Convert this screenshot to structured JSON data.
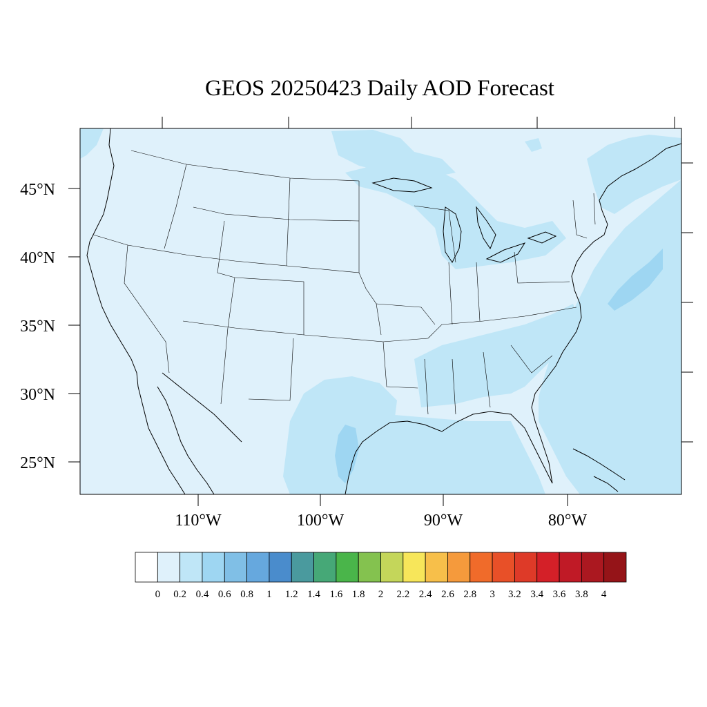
{
  "title": "GEOS 20250423 Daily AOD Forecast",
  "lat_labels": [
    "45°N",
    "40°N",
    "35°N",
    "30°N",
    "25°N"
  ],
  "lon_labels": [
    "110°W",
    "100°W",
    "90°W",
    "80°W"
  ],
  "colorbar": {
    "labels": [
      "0",
      "0.2",
      "0.4",
      "0.6",
      "0.8",
      "1",
      "1.2",
      "1.4",
      "1.6",
      "1.8",
      "2",
      "2.2",
      "2.4",
      "2.6",
      "2.8",
      "3",
      "3.2",
      "3.4",
      "3.6",
      "3.8",
      "4"
    ],
    "colors": [
      "#ffffff",
      "#dff1fb",
      "#bfe6f7",
      "#9ed6f2",
      "#80bfe6",
      "#66a8de",
      "#4a8ccc",
      "#4a9a9e",
      "#46a877",
      "#4ab54a",
      "#84c24f",
      "#c4d65a",
      "#f7e65a",
      "#f7bf4a",
      "#f59a3c",
      "#f06b2a",
      "#e85028",
      "#de3a28",
      "#d42028",
      "#c01a26",
      "#ab1820",
      "#951418"
    ]
  },
  "map_colors": {
    "background": "#dff1fb",
    "aod_02_04": "#bfe6f7",
    "aod_04_06": "#9ed6f2"
  }
}
